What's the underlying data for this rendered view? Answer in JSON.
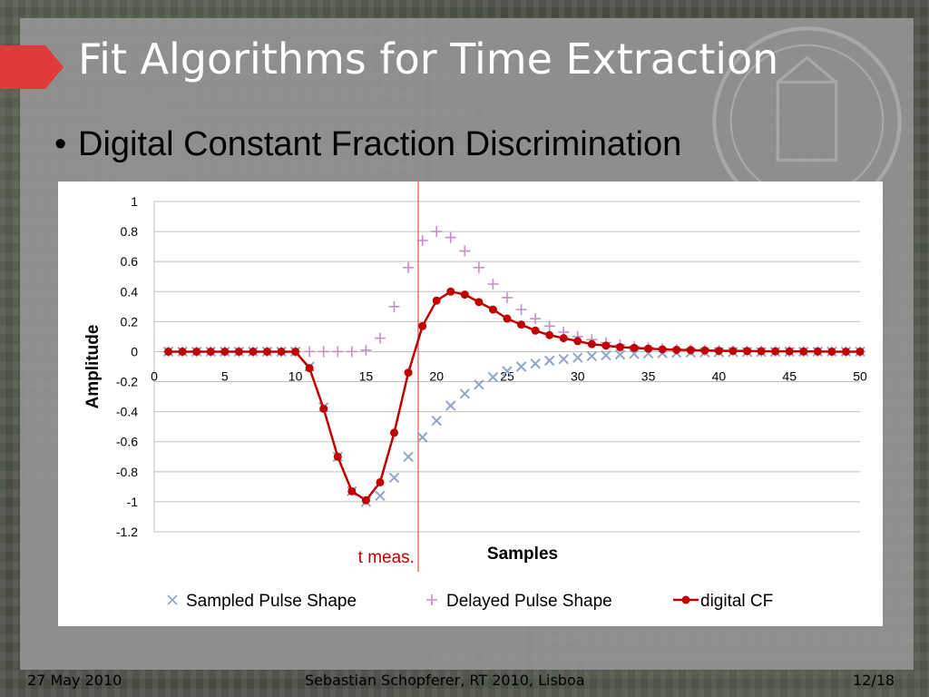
{
  "slide": {
    "title": "Fit Algorithms for Time Extraction",
    "bullet": "Digital Constant Fraction Discrimination",
    "footer_date": "27 May 2010",
    "footer_center": "Sebastian Schopferer, RT 2010, Lisboa",
    "footer_page": "12/18"
  },
  "colors": {
    "title": "#ffffff",
    "accent": "#e03a3a",
    "sampled": "#8fa6c7",
    "delayed": "#c58fc7",
    "digital_cf": "#c00000",
    "marker_line": "#e06050"
  },
  "chart_data": {
    "type": "scatter",
    "xlabel": "Samples",
    "ylabel": "Amplitude",
    "xlim": [
      0,
      50
    ],
    "ylim": [
      -1.2,
      1
    ],
    "x_ticks": [
      "0",
      "5",
      "10",
      "15",
      "20",
      "25",
      "30",
      "35",
      "40",
      "45",
      "50"
    ],
    "y_ticks": [
      "1",
      "0.8",
      "0.6",
      "0.4",
      "0.2",
      "0",
      "-0.2",
      "-0.4",
      "-0.6",
      "-0.8",
      "-1",
      "-1.2"
    ],
    "grid": true,
    "legend_position": "bottom",
    "annotation": {
      "label": "t meas.",
      "x": 18.7
    },
    "series": [
      {
        "name": "Sampled Pulse Shape",
        "marker": "x",
        "x": [
          1,
          2,
          3,
          4,
          5,
          6,
          7,
          8,
          9,
          10,
          11,
          12,
          13,
          14,
          15,
          16,
          17,
          18,
          19,
          20,
          21,
          22,
          23,
          24,
          25,
          26,
          27,
          28,
          29,
          30,
          31,
          32,
          33,
          34,
          35,
          36,
          37,
          38,
          39,
          40,
          41,
          42,
          43,
          44,
          45,
          46,
          47,
          48,
          49,
          50
        ],
        "y": [
          0,
          0,
          0,
          0,
          0,
          0,
          0,
          0,
          0,
          0,
          -0.1,
          -0.37,
          -0.7,
          -0.93,
          -1.0,
          -0.96,
          -0.84,
          -0.7,
          -0.57,
          -0.46,
          -0.36,
          -0.28,
          -0.22,
          -0.17,
          -0.13,
          -0.1,
          -0.08,
          -0.06,
          -0.05,
          -0.04,
          -0.03,
          -0.025,
          -0.02,
          -0.015,
          -0.012,
          -0.01,
          -0.008,
          -0.006,
          -0.005,
          -0.004,
          -0.003,
          -0.002,
          -0.002,
          -0.001,
          -0.001,
          0,
          0,
          0,
          0,
          0
        ]
      },
      {
        "name": "Delayed Pulse Shape",
        "marker": "+",
        "x": [
          1,
          2,
          3,
          4,
          5,
          6,
          7,
          8,
          9,
          10,
          11,
          12,
          13,
          14,
          15,
          16,
          17,
          18,
          19,
          20,
          21,
          22,
          23,
          24,
          25,
          26,
          27,
          28,
          29,
          30,
          31,
          32,
          33,
          34,
          35,
          36,
          37,
          38,
          39,
          40,
          41,
          42,
          43,
          44,
          45,
          46,
          47,
          48,
          49,
          50
        ],
        "y": [
          0,
          0,
          0,
          0,
          0,
          0,
          0,
          0,
          0,
          0,
          0,
          0,
          0,
          0,
          0.01,
          0.09,
          0.3,
          0.56,
          0.74,
          0.8,
          0.76,
          0.67,
          0.56,
          0.45,
          0.36,
          0.28,
          0.22,
          0.17,
          0.13,
          0.1,
          0.08,
          0.06,
          0.045,
          0.035,
          0.027,
          0.02,
          0.015,
          0.012,
          0.009,
          0.007,
          0.005,
          0.004,
          0.003,
          0.002,
          0.002,
          0.001,
          0.001,
          0,
          0,
          0
        ]
      },
      {
        "name": "digital CF",
        "marker": "dot-line",
        "x": [
          1,
          2,
          3,
          4,
          5,
          6,
          7,
          8,
          9,
          10,
          11,
          12,
          13,
          14,
          15,
          16,
          17,
          18,
          19,
          20,
          21,
          22,
          23,
          24,
          25,
          26,
          27,
          28,
          29,
          30,
          31,
          32,
          33,
          34,
          35,
          36,
          37,
          38,
          39,
          40,
          41,
          42,
          43,
          44,
          45,
          46,
          47,
          48,
          49,
          50
        ],
        "y": [
          0,
          0,
          0,
          0,
          0,
          0,
          0,
          0,
          0,
          0,
          -0.11,
          -0.38,
          -0.7,
          -0.93,
          -0.99,
          -0.87,
          -0.54,
          -0.14,
          0.17,
          0.34,
          0.4,
          0.38,
          0.33,
          0.28,
          0.22,
          0.18,
          0.14,
          0.11,
          0.09,
          0.07,
          0.05,
          0.04,
          0.03,
          0.025,
          0.02,
          0.015,
          0.012,
          0.01,
          0.008,
          0.006,
          0.005,
          0.004,
          0.003,
          0.002,
          0.002,
          0.001,
          0.001,
          0,
          0,
          0
        ]
      }
    ]
  }
}
